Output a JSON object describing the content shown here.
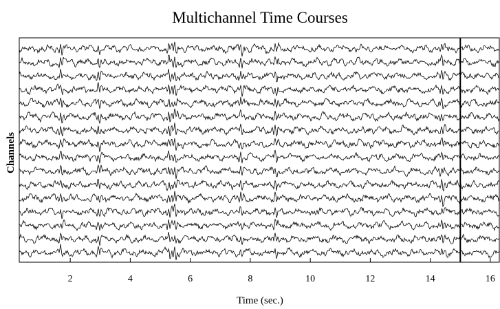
{
  "chart_data": {
    "type": "line",
    "title": "Multichannel Time Courses",
    "xlabel": "Time (sec.)",
    "ylabel": "Channels",
    "xlim": [
      0.3,
      16.3
    ],
    "x_ticks": [
      2,
      4,
      6,
      8,
      10,
      12,
      14,
      16
    ],
    "channel_count": 16,
    "event_marker_x": 15.0,
    "grid": false,
    "legend": "none",
    "line_color": "#000000",
    "background": "#ffffff"
  }
}
